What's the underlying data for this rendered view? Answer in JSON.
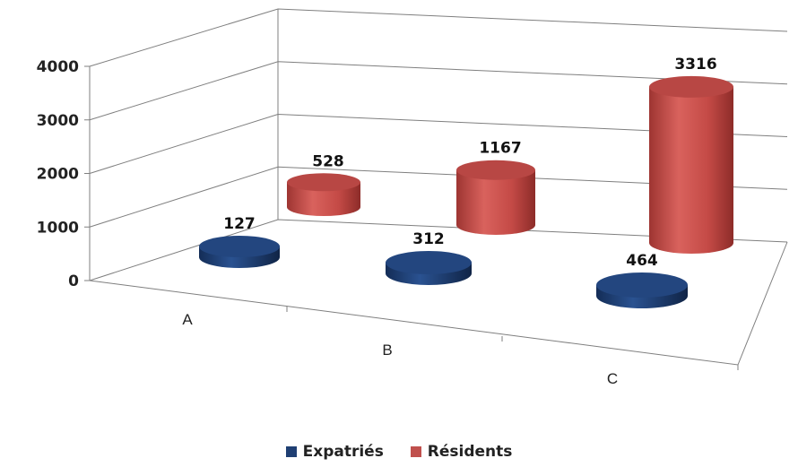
{
  "chart_data": {
    "type": "bar",
    "style": "3d-cylinder",
    "categories": [
      "A",
      "B",
      "C"
    ],
    "series": [
      {
        "name": "Expatriés",
        "values": [
          127,
          312,
          464
        ],
        "color": "#1f3f73"
      },
      {
        "name": "Résidents",
        "values": [
          528,
          1167,
          3316
        ],
        "color": "#c0504d"
      }
    ],
    "yticks": [
      "0",
      "1000",
      "2000",
      "3000",
      "4000"
    ],
    "ylim": [
      0,
      4000
    ],
    "grid": true,
    "legend_position": "bottom",
    "data_labels": true
  }
}
